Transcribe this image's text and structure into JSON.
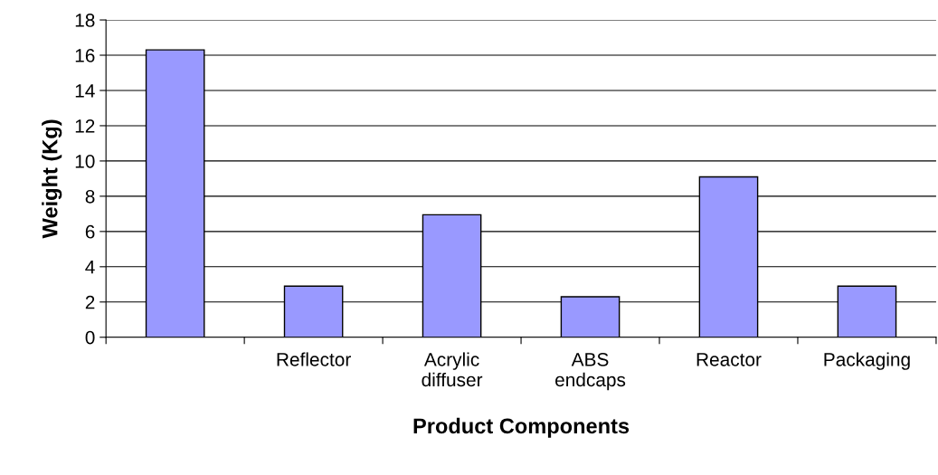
{
  "chart_data": {
    "type": "bar",
    "xlabel": "Product Components",
    "ylabel": "Weight (Kg)",
    "categories": [
      null,
      "Reflector",
      "Acrylic\ndiffuser",
      "ABS\nendcaps",
      "Reactor",
      "Packaging"
    ],
    "values": [
      16.3,
      2.9,
      6.95,
      2.3,
      9.1,
      2.9
    ],
    "color": "#9999ff",
    "ylim": [
      0,
      18
    ],
    "yticks": [
      0,
      2,
      4,
      6,
      8,
      10,
      12,
      14,
      16,
      18
    ],
    "grid": "y",
    "legend": false
  }
}
